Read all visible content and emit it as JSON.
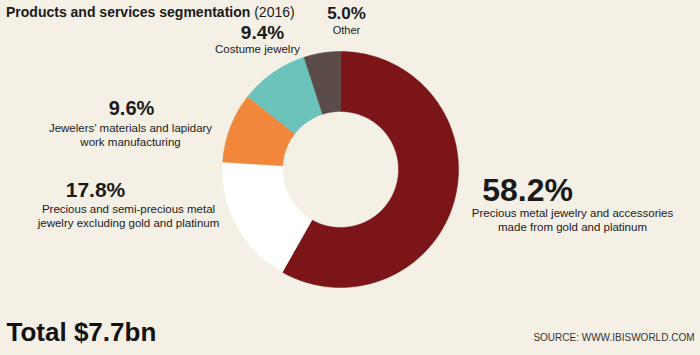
{
  "chart_data": {
    "type": "donut",
    "title": "Products and services segmentation (2016)",
    "categories": [
      "Precious metal jewelry and accessories\nmade from gold and platinum",
      "Precious and semi-precious metal\njewelry excluding gold and platinum",
      "Jewelers’ materials and lapidary\nwork manufacturing",
      "Costume jewelry",
      "Other"
    ],
    "values": [
      58.2,
      17.8,
      9.6,
      9.4,
      5.0
    ],
    "value_labels": [
      "58.2%",
      "17.8%",
      "9.6%",
      "9.4%",
      "5.0%"
    ],
    "colors": [
      "#7b1518",
      "#ffffff",
      "#f0873a",
      "#6cc3bb",
      "#5b4b49"
    ],
    "data_labels": true,
    "annotations": [
      "Total $7.7bn",
      "SOURCE: WWW.IBISWORLD.COM"
    ]
  }
}
